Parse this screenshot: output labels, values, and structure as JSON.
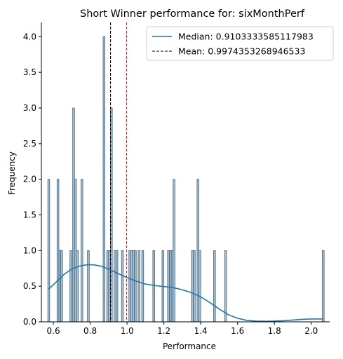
{
  "chart_data": {
    "type": "histogram",
    "title": "Short Winner performance for: sixMonthPerf",
    "xlabel": "Performance",
    "ylabel": "Frequency",
    "xlim": [
      0.535,
      2.1
    ],
    "ylim": [
      0,
      4.2
    ],
    "xticks": [
      0.6,
      0.8,
      1.0,
      1.2,
      1.4,
      1.6,
      1.8,
      2.0
    ],
    "xtick_labels": [
      "0.6",
      "0.8",
      "1.0",
      "1.2",
      "1.4",
      "1.6",
      "1.8",
      "2.0"
    ],
    "yticks": [
      0.0,
      0.5,
      1.0,
      1.5,
      2.0,
      2.5,
      3.0,
      3.5,
      4.0
    ],
    "ytick_labels": [
      "0.0",
      "0.5",
      "1.0",
      "1.5",
      "2.0",
      "2.5",
      "3.0",
      "3.5",
      "4.0"
    ],
    "bin_width": 0.01,
    "bins": [
      {
        "x": 0.575,
        "count": 2
      },
      {
        "x": 0.625,
        "count": 2
      },
      {
        "x": 0.635,
        "count": 1
      },
      {
        "x": 0.645,
        "count": 1
      },
      {
        "x": 0.695,
        "count": 1
      },
      {
        "x": 0.71,
        "count": 3
      },
      {
        "x": 0.72,
        "count": 2
      },
      {
        "x": 0.73,
        "count": 1
      },
      {
        "x": 0.755,
        "count": 2
      },
      {
        "x": 0.79,
        "count": 1
      },
      {
        "x": 0.875,
        "count": 4
      },
      {
        "x": 0.895,
        "count": 1
      },
      {
        "x": 0.905,
        "count": 1
      },
      {
        "x": 0.915,
        "count": 3
      },
      {
        "x": 0.935,
        "count": 1
      },
      {
        "x": 0.945,
        "count": 1
      },
      {
        "x": 0.975,
        "count": 1
      },
      {
        "x": 1.015,
        "count": 1
      },
      {
        "x": 1.025,
        "count": 1
      },
      {
        "x": 1.035,
        "count": 1
      },
      {
        "x": 1.045,
        "count": 1
      },
      {
        "x": 1.065,
        "count": 1
      },
      {
        "x": 1.085,
        "count": 1
      },
      {
        "x": 1.145,
        "count": 1
      },
      {
        "x": 1.195,
        "count": 1
      },
      {
        "x": 1.225,
        "count": 1
      },
      {
        "x": 1.235,
        "count": 1
      },
      {
        "x": 1.245,
        "count": 1
      },
      {
        "x": 1.255,
        "count": 2
      },
      {
        "x": 1.355,
        "count": 1
      },
      {
        "x": 1.365,
        "count": 1
      },
      {
        "x": 1.385,
        "count": 2
      },
      {
        "x": 1.395,
        "count": 1
      },
      {
        "x": 1.475,
        "count": 1
      },
      {
        "x": 1.535,
        "count": 1
      },
      {
        "x": 2.065,
        "count": 1
      }
    ],
    "kde": {
      "x": [
        0.575,
        0.62,
        0.66,
        0.7,
        0.74,
        0.78,
        0.82,
        0.86,
        0.9,
        0.95,
        1.0,
        1.05,
        1.1,
        1.15,
        1.2,
        1.25,
        1.3,
        1.35,
        1.4,
        1.45,
        1.5,
        1.55,
        1.6,
        1.65,
        1.7,
        1.75,
        1.8,
        1.85,
        1.9,
        1.95,
        2.0,
        2.065
      ],
      "y": [
        0.46,
        0.57,
        0.67,
        0.74,
        0.78,
        0.8,
        0.8,
        0.78,
        0.74,
        0.68,
        0.62,
        0.57,
        0.53,
        0.51,
        0.495,
        0.48,
        0.45,
        0.41,
        0.35,
        0.27,
        0.18,
        0.1,
        0.05,
        0.02,
        0.01,
        0.008,
        0.01,
        0.015,
        0.025,
        0.035,
        0.04,
        0.04
      ]
    },
    "median": {
      "value": 0.9103333585117983,
      "label": "Median: 0.9103333585117983",
      "color": "#000000"
    },
    "mean": {
      "value": 0.9974353268946533,
      "label": "Mean: 0.9974353268946533",
      "color": "#d62728"
    },
    "colors": {
      "bar_fill": "#9ec3dc",
      "bar_edge": "#4a5d6b",
      "kde_line": "#1f77b4",
      "median_line": "#000000",
      "mean_line": "#d62728"
    },
    "legend": {
      "placement": "top-right",
      "entries": [
        {
          "label": "Median: 0.9103333585117983",
          "style": "solid",
          "color": "#1f77b4"
        },
        {
          "label": "Mean: 0.9974353268946533",
          "style": "dashed",
          "color": "#000000"
        }
      ]
    }
  }
}
